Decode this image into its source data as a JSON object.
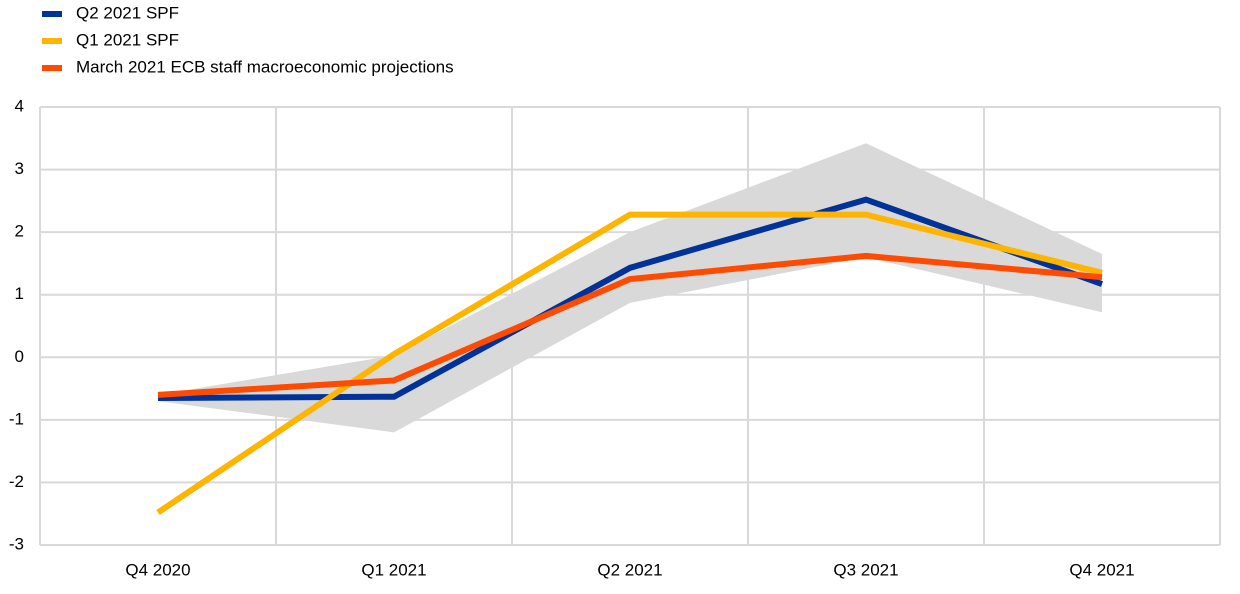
{
  "chart_data": {
    "type": "line",
    "categories": [
      "Q4 2020",
      "Q1 2021",
      "Q2 2021",
      "Q3 2021",
      "Q4 2021"
    ],
    "series": [
      {
        "name": "Q2 2021 SPF",
        "color": "#003299",
        "values": [
          -0.65,
          -0.63,
          1.43,
          2.52,
          1.17
        ]
      },
      {
        "name": "Q1 2021 SPF",
        "color": "#FFB400",
        "values": [
          -2.48,
          0.05,
          2.28,
          2.28,
          1.35
        ]
      },
      {
        "name": "March 2021 ECB staff macroeconomic projections",
        "color": "#FF4B00",
        "values": [
          -0.6,
          -0.37,
          1.25,
          1.62,
          1.28
        ]
      }
    ],
    "band": {
      "color": "#d9d9d9",
      "upper": [
        -0.6,
        0.03,
        2.0,
        3.42,
        1.65
      ],
      "lower": [
        -0.7,
        -1.2,
        0.87,
        1.6,
        0.72
      ]
    },
    "ylim": [
      -3,
      4
    ],
    "yticks": [
      -3,
      -2,
      -1,
      0,
      1,
      2,
      3,
      4
    ],
    "grid": true,
    "legend": "top-left"
  }
}
